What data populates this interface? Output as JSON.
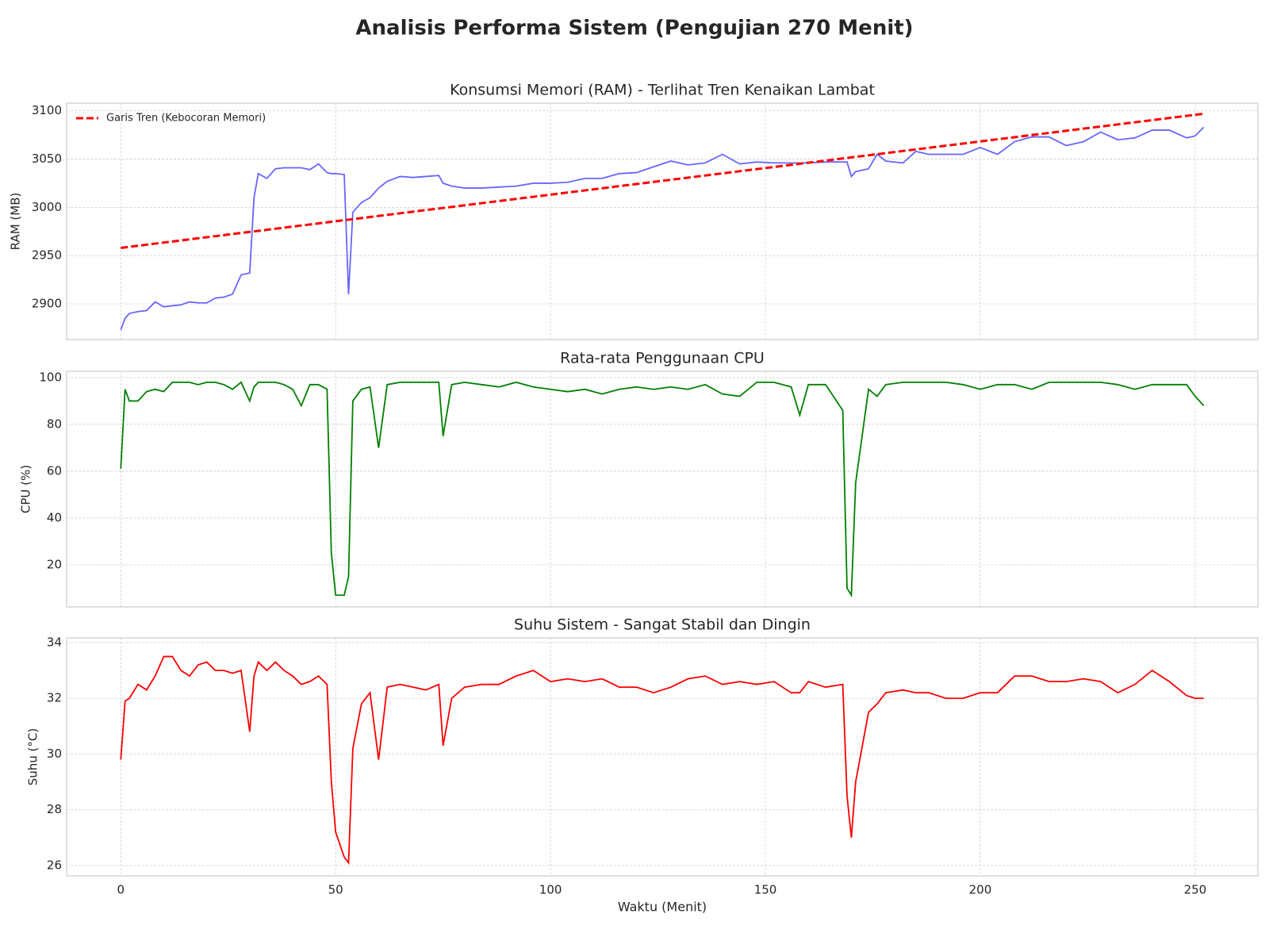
{
  "title": "Analisis Performa Sistem (Pengujian 270 Menit)",
  "chart_data": [
    {
      "type": "line",
      "title": "Konsumsi Memori (RAM) - Terlihat Tren Kenaikan Lambat",
      "ylabel": "RAM (MB)",
      "xlim": [
        -12.6,
        264.6
      ],
      "xticks": [
        0,
        50,
        100,
        150,
        200,
        250
      ],
      "ylim": [
        2863,
        3108
      ],
      "yticks": [
        2900,
        2950,
        3000,
        3050,
        3100
      ],
      "grid": true,
      "legend": "upper left",
      "x": [
        0,
        1,
        2,
        4,
        6,
        8,
        10,
        12,
        14,
        16,
        18,
        20,
        22,
        24,
        26,
        28,
        30,
        31,
        32,
        34,
        36,
        38,
        40,
        42,
        44,
        46,
        48,
        49,
        50,
        52,
        53,
        54,
        56,
        58,
        60,
        62,
        65,
        68,
        71,
        74,
        75,
        77,
        80,
        84,
        88,
        92,
        96,
        100,
        104,
        108,
        112,
        116,
        120,
        124,
        128,
        132,
        136,
        140,
        144,
        148,
        152,
        156,
        158,
        160,
        164,
        168,
        169,
        170,
        171,
        174,
        176,
        178,
        182,
        185,
        188,
        192,
        196,
        200,
        204,
        208,
        212,
        216,
        220,
        224,
        228,
        232,
        236,
        240,
        244,
        248,
        250,
        252
      ],
      "series": [
        {
          "color": "#6666ff",
          "values": [
            2873,
            2885,
            2890,
            2892,
            2893,
            2902,
            2897,
            2898,
            2899,
            2902,
            2901,
            2901,
            2906,
            2907,
            2910,
            2930,
            2932,
            3010,
            3035,
            3030,
            3040,
            3041,
            3041,
            3041,
            3039,
            3045,
            3036,
            3035,
            3035,
            3034,
            2910,
            2995,
            3005,
            3010,
            3020,
            3027,
            3032,
            3031,
            3032,
            3033,
            3025,
            3022,
            3020,
            3020,
            3021,
            3022,
            3025,
            3025,
            3026,
            3030,
            3030,
            3035,
            3036,
            3042,
            3048,
            3044,
            3046,
            3055,
            3045,
            3047,
            3046,
            3046,
            3046,
            3046,
            3047,
            3047,
            3047,
            3032,
            3037,
            3040,
            3055,
            3048,
            3046,
            3058,
            3055,
            3055,
            3055,
            3062,
            3055,
            3068,
            3073,
            3073,
            3064,
            3068,
            3078,
            3070,
            3072,
            3080,
            3080,
            3072,
            3074,
            3083
          ]
        },
        {
          "name": "Garis Tren (Kebocoran Memori)",
          "color": "#ff0000",
          "dashed": true,
          "x": [
            0,
            252
          ],
          "values": [
            2958,
            3097
          ]
        }
      ]
    },
    {
      "type": "line",
      "title": "Rata-rata Penggunaan CPU",
      "ylabel": "CPU (%)",
      "xlim": [
        -12.6,
        264.6
      ],
      "xticks": [
        0,
        50,
        100,
        150,
        200,
        250
      ],
      "ylim": [
        2,
        102.7
      ],
      "yticks": [
        20,
        40,
        60,
        80,
        100
      ],
      "grid": true,
      "x": [
        0,
        1,
        2,
        4,
        6,
        8,
        10,
        12,
        14,
        16,
        18,
        20,
        22,
        24,
        26,
        28,
        30,
        31,
        32,
        34,
        36,
        38,
        40,
        42,
        44,
        46,
        48,
        49,
        50,
        52,
        53,
        54,
        56,
        58,
        60,
        62,
        65,
        68,
        71,
        74,
        75,
        77,
        80,
        84,
        88,
        92,
        96,
        100,
        104,
        108,
        112,
        116,
        120,
        124,
        128,
        132,
        136,
        140,
        144,
        148,
        152,
        156,
        158,
        160,
        164,
        168,
        169,
        170,
        171,
        174,
        176,
        178,
        182,
        185,
        188,
        192,
        196,
        200,
        204,
        208,
        212,
        216,
        220,
        224,
        228,
        232,
        236,
        240,
        244,
        248,
        250,
        252
      ],
      "series": [
        {
          "color": "#008000",
          "values": [
            61,
            95,
            90,
            90,
            94,
            95,
            94,
            98,
            98,
            98,
            97,
            98,
            98,
            97,
            95,
            98,
            90,
            96,
            98,
            98,
            98,
            97,
            95,
            88,
            97,
            97,
            95,
            25,
            7,
            7,
            15,
            90,
            95,
            96,
            70,
            97,
            98,
            98,
            98,
            98,
            75,
            97,
            98,
            97,
            96,
            98,
            96,
            95,
            94,
            95,
            93,
            95,
            96,
            95,
            96,
            95,
            97,
            93,
            92,
            98,
            98,
            96,
            84,
            97,
            97,
            86,
            10,
            7,
            55,
            95,
            92,
            97,
            98,
            98,
            98,
            98,
            97,
            95,
            97,
            97,
            95,
            98,
            98,
            98,
            98,
            97,
            95,
            97,
            97,
            97,
            92,
            88
          ]
        }
      ]
    },
    {
      "type": "line",
      "title": "Suhu Sistem - Sangat Stabil dan Dingin",
      "ylabel": "Suhu (°C)",
      "xlabel": "Waktu (Menit)",
      "xlim": [
        -12.6,
        264.6
      ],
      "xticks": [
        0,
        50,
        100,
        150,
        200,
        250
      ],
      "ylim": [
        25.63,
        34.17
      ],
      "yticks": [
        26,
        28,
        30,
        32,
        34
      ],
      "grid": true,
      "x": [
        0,
        1,
        2,
        4,
        6,
        8,
        10,
        12,
        14,
        16,
        18,
        20,
        22,
        24,
        26,
        28,
        30,
        31,
        32,
        34,
        36,
        38,
        40,
        42,
        44,
        46,
        48,
        49,
        50,
        52,
        53,
        54,
        56,
        58,
        60,
        62,
        65,
        68,
        71,
        74,
        75,
        77,
        80,
        84,
        88,
        92,
        96,
        100,
        104,
        108,
        112,
        116,
        120,
        124,
        128,
        132,
        136,
        140,
        144,
        148,
        152,
        156,
        158,
        160,
        164,
        168,
        169,
        170,
        171,
        174,
        176,
        178,
        182,
        185,
        188,
        192,
        196,
        200,
        204,
        208,
        212,
        216,
        220,
        224,
        228,
        232,
        236,
        240,
        244,
        248,
        250,
        252
      ],
      "series": [
        {
          "color": "#ff0000",
          "values": [
            29.8,
            31.9,
            32,
            32.5,
            32.3,
            32.8,
            33.5,
            33.5,
            33,
            32.8,
            33.2,
            33.3,
            33,
            33,
            32.9,
            33,
            30.8,
            32.8,
            33.3,
            33,
            33.3,
            33,
            32.8,
            32.5,
            32.6,
            32.8,
            32.5,
            29,
            27.2,
            26.3,
            26.1,
            30.2,
            31.8,
            32.2,
            29.8,
            32.4,
            32.5,
            32.4,
            32.3,
            32.5,
            30.3,
            32,
            32.4,
            32.5,
            32.5,
            32.8,
            33,
            32.6,
            32.7,
            32.6,
            32.7,
            32.4,
            32.4,
            32.2,
            32.4,
            32.7,
            32.8,
            32.5,
            32.6,
            32.5,
            32.6,
            32.2,
            32.2,
            32.6,
            32.4,
            32.5,
            28.5,
            27,
            29,
            31.5,
            31.8,
            32.2,
            32.3,
            32.2,
            32.2,
            32,
            32,
            32.2,
            32.2,
            32.8,
            32.8,
            32.6,
            32.6,
            32.7,
            32.6,
            32.2,
            32.5,
            33,
            32.6,
            32.1,
            32,
            32
          ]
        }
      ]
    }
  ]
}
